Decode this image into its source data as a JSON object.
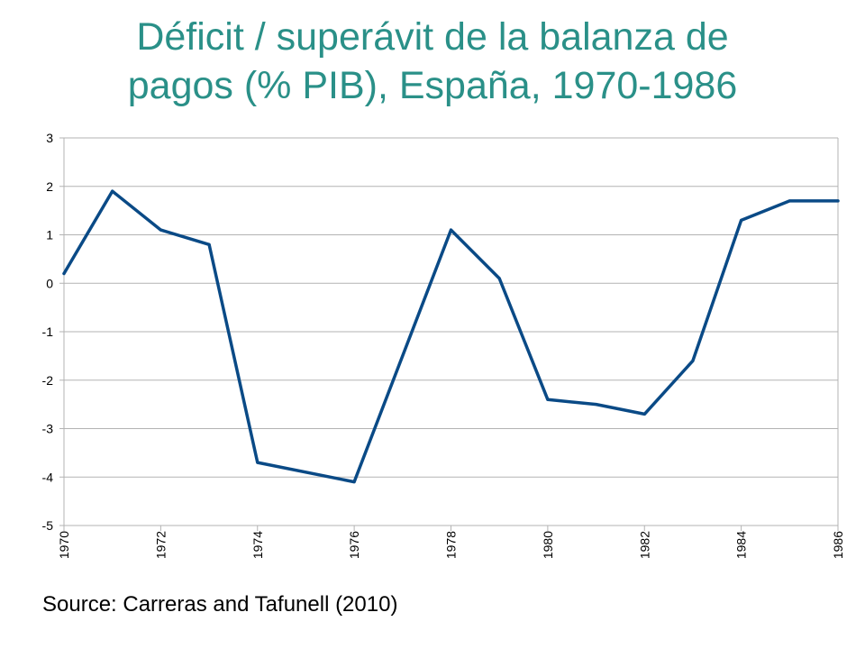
{
  "title_lines": [
    "Déficit / superávit de la balanza de",
    "pagos (% PIB), España, 1970-1986"
  ],
  "source": "Source: Carreras and Tafunell (2010)",
  "colors": {
    "title": "#2a9088",
    "line": "#0a4a86",
    "grid": "#b3b3b3",
    "axis": "#b3b3b3"
  },
  "chart_data": {
    "type": "line",
    "title": "Déficit / superávit de la balanza de pagos (% PIB), España, 1970-1986",
    "xlabel": "",
    "ylabel": "",
    "xlim": [
      1970,
      1986
    ],
    "ylim": [
      -5,
      3
    ],
    "x_ticks": [
      "1970",
      "1972",
      "1974",
      "1976",
      "1978",
      "1980",
      "1982",
      "1984",
      "1986"
    ],
    "y_ticks": [
      "3",
      "2",
      "1",
      "0",
      "-1",
      "-2",
      "-3",
      "-4",
      "-5"
    ],
    "grid": true,
    "legend": "none",
    "series": [
      {
        "x": [
          1970,
          1971,
          1972,
          1973,
          1974,
          1976,
          1978,
          1979,
          1980,
          1981,
          1982,
          1983,
          1984,
          1985,
          1986
        ],
        "values": [
          0.2,
          1.9,
          1.1,
          0.8,
          -3.7,
          -4.1,
          1.1,
          0.1,
          -2.4,
          -2.5,
          -2.7,
          -1.6,
          1.3,
          1.7,
          1.7
        ]
      }
    ]
  }
}
